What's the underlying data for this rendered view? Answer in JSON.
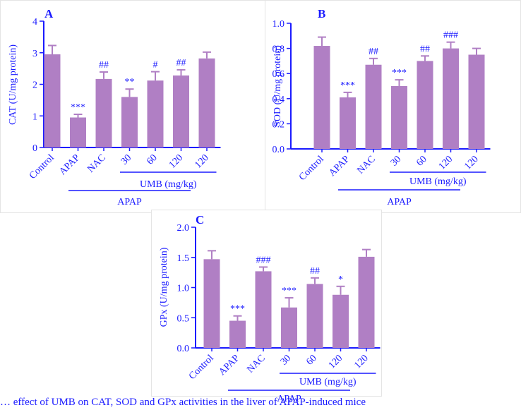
{
  "figure": {
    "caption": "… effect of UMB on CAT, SOD and GPx activities in the liver of APAP-induced mice"
  },
  "chart_data": [
    {
      "type": "bar",
      "panel_label": "A",
      "ylabel": "CAT (U/mg protein)",
      "ylim": [
        0,
        4
      ],
      "yticks": [
        "0",
        "1",
        "2",
        "3",
        "4"
      ],
      "categories": [
        "Control",
        "APAP",
        "NAC",
        "30",
        "60",
        "120",
        "120"
      ],
      "values": [
        2.95,
        0.95,
        2.17,
        1.6,
        2.12,
        2.28,
        2.82
      ],
      "errors": [
        0.28,
        0.1,
        0.22,
        0.25,
        0.28,
        0.18,
        0.2
      ],
      "significance": [
        "",
        "***",
        "##",
        "**",
        "#",
        "##",
        ""
      ],
      "groups": [
        {
          "label": "UMB (mg/kg)",
          "from": 3,
          "to": 6
        },
        {
          "label": "APAP",
          "from": 1,
          "to": 5
        }
      ]
    },
    {
      "type": "bar",
      "panel_label": "B",
      "ylabel": "SOD (U/mg protein)",
      "ylim": [
        0,
        1
      ],
      "yticks": [
        "0.0",
        "0.2",
        "0.4",
        "0.6",
        "0.8",
        "1.0"
      ],
      "categories": [
        "Control",
        "APAP",
        "NAC",
        "30",
        "60",
        "120",
        "120"
      ],
      "values": [
        0.82,
        0.41,
        0.67,
        0.5,
        0.7,
        0.8,
        0.75
      ],
      "errors": [
        0.07,
        0.04,
        0.05,
        0.05,
        0.04,
        0.05,
        0.05
      ],
      "significance": [
        "",
        "***",
        "##",
        "***",
        "##",
        "###",
        ""
      ],
      "groups": [
        {
          "label": "UMB (mg/kg)",
          "from": 3,
          "to": 6
        },
        {
          "label": "APAP",
          "from": 1,
          "to": 5
        }
      ]
    },
    {
      "type": "bar",
      "panel_label": "C",
      "ylabel": "GPx (U/mg protein)",
      "ylim": [
        0,
        2
      ],
      "yticks": [
        "0.0",
        "0.5",
        "1.0",
        "1.5",
        "2.0"
      ],
      "categories": [
        "Control",
        "APAP",
        "NAC",
        "30",
        "60",
        "120",
        "120"
      ],
      "values": [
        1.47,
        0.45,
        1.27,
        0.67,
        1.06,
        0.88,
        1.51
      ],
      "errors": [
        0.14,
        0.08,
        0.07,
        0.16,
        0.1,
        0.14,
        0.12
      ],
      "significance": [
        "",
        "***",
        "###",
        "***",
        "##",
        "*",
        ""
      ],
      "groups": [
        {
          "label": "UMB (mg/kg)",
          "from": 3,
          "to": 6
        },
        {
          "label": "APAP",
          "from": 1,
          "to": 5
        }
      ]
    }
  ]
}
